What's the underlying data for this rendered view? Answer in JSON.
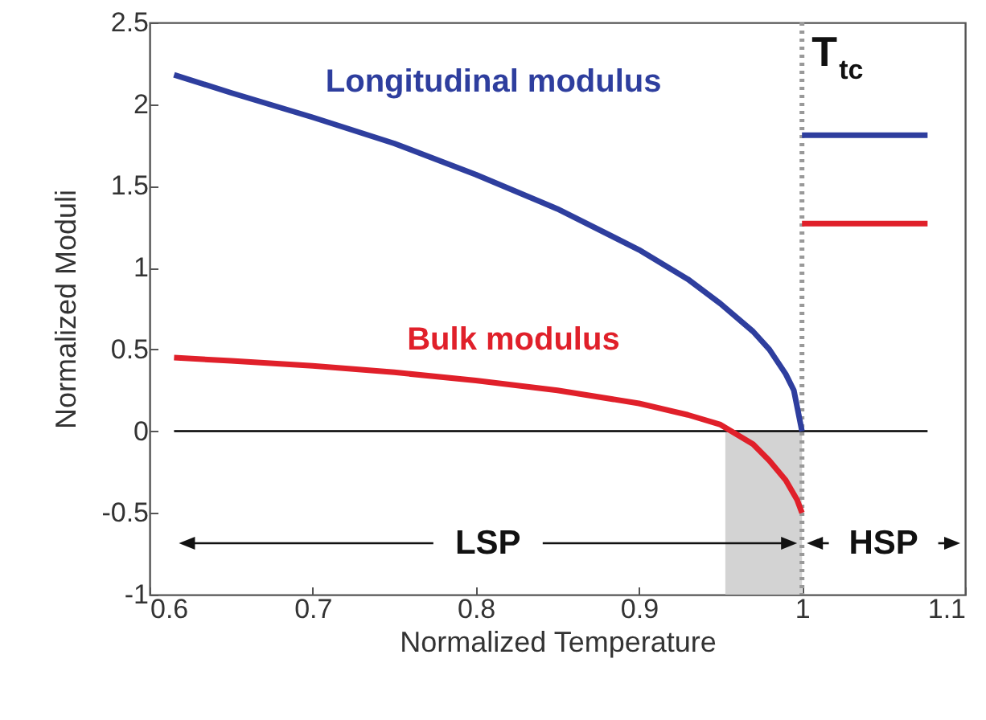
{
  "chart_data": {
    "type": "line",
    "xlabel": "Normalized Temperature",
    "ylabel": "Normalized Moduli",
    "series": [
      {
        "name": "Longitudinal modulus",
        "color": "#2e3e9e",
        "x": [
          0.615,
          0.65,
          0.7,
          0.75,
          0.8,
          0.85,
          0.9,
          0.93,
          0.95,
          0.97,
          0.98,
          0.99,
          0.995,
          1.0,
          null,
          1.0,
          1.077
        ],
        "values": [
          2.18,
          2.07,
          1.92,
          1.76,
          1.57,
          1.36,
          1.11,
          0.93,
          0.78,
          0.61,
          0.5,
          0.35,
          0.25,
          0,
          null,
          1.81,
          1.81
        ]
      },
      {
        "name": "Bulk modulus",
        "color": "#e0202a",
        "x": [
          0.615,
          0.65,
          0.7,
          0.75,
          0.8,
          0.85,
          0.9,
          0.93,
          0.95,
          0.97,
          0.98,
          0.99,
          0.997,
          1.0,
          null,
          1.0,
          1.077
        ],
        "values": [
          0.45,
          0.43,
          0.4,
          0.36,
          0.31,
          0.25,
          0.17,
          0.1,
          0.04,
          -0.08,
          -0.18,
          -0.3,
          -0.42,
          -0.5,
          null,
          1.27,
          1.27
        ]
      }
    ],
    "xlim": [
      0.6,
      1.1
    ],
    "xticks": [
      0.6,
      0.7,
      0.8,
      0.9,
      1,
      1.1
    ],
    "ylim": [
      -1,
      2.5
    ],
    "yticks": [
      -1,
      -0.5,
      0,
      0.5,
      1,
      1.5,
      2,
      2.5
    ],
    "ref_lines": [
      {
        "axis": "x",
        "value": 1,
        "label": "T$_{tc}$",
        "color": "#999999",
        "line_style": "dotted"
      },
      {
        "axis": "y",
        "value": 0,
        "color": "#000000",
        "line_style": "solid"
      }
    ],
    "bands": [
      {
        "axis": "x",
        "from": 0.953,
        "to": 1.0,
        "color": "#d3d3d3"
      }
    ],
    "annotations": [
      "LSP",
      "HSP"
    ],
    "grid": false,
    "legend": false,
    "marker": "none",
    "line_style": "solid"
  }
}
